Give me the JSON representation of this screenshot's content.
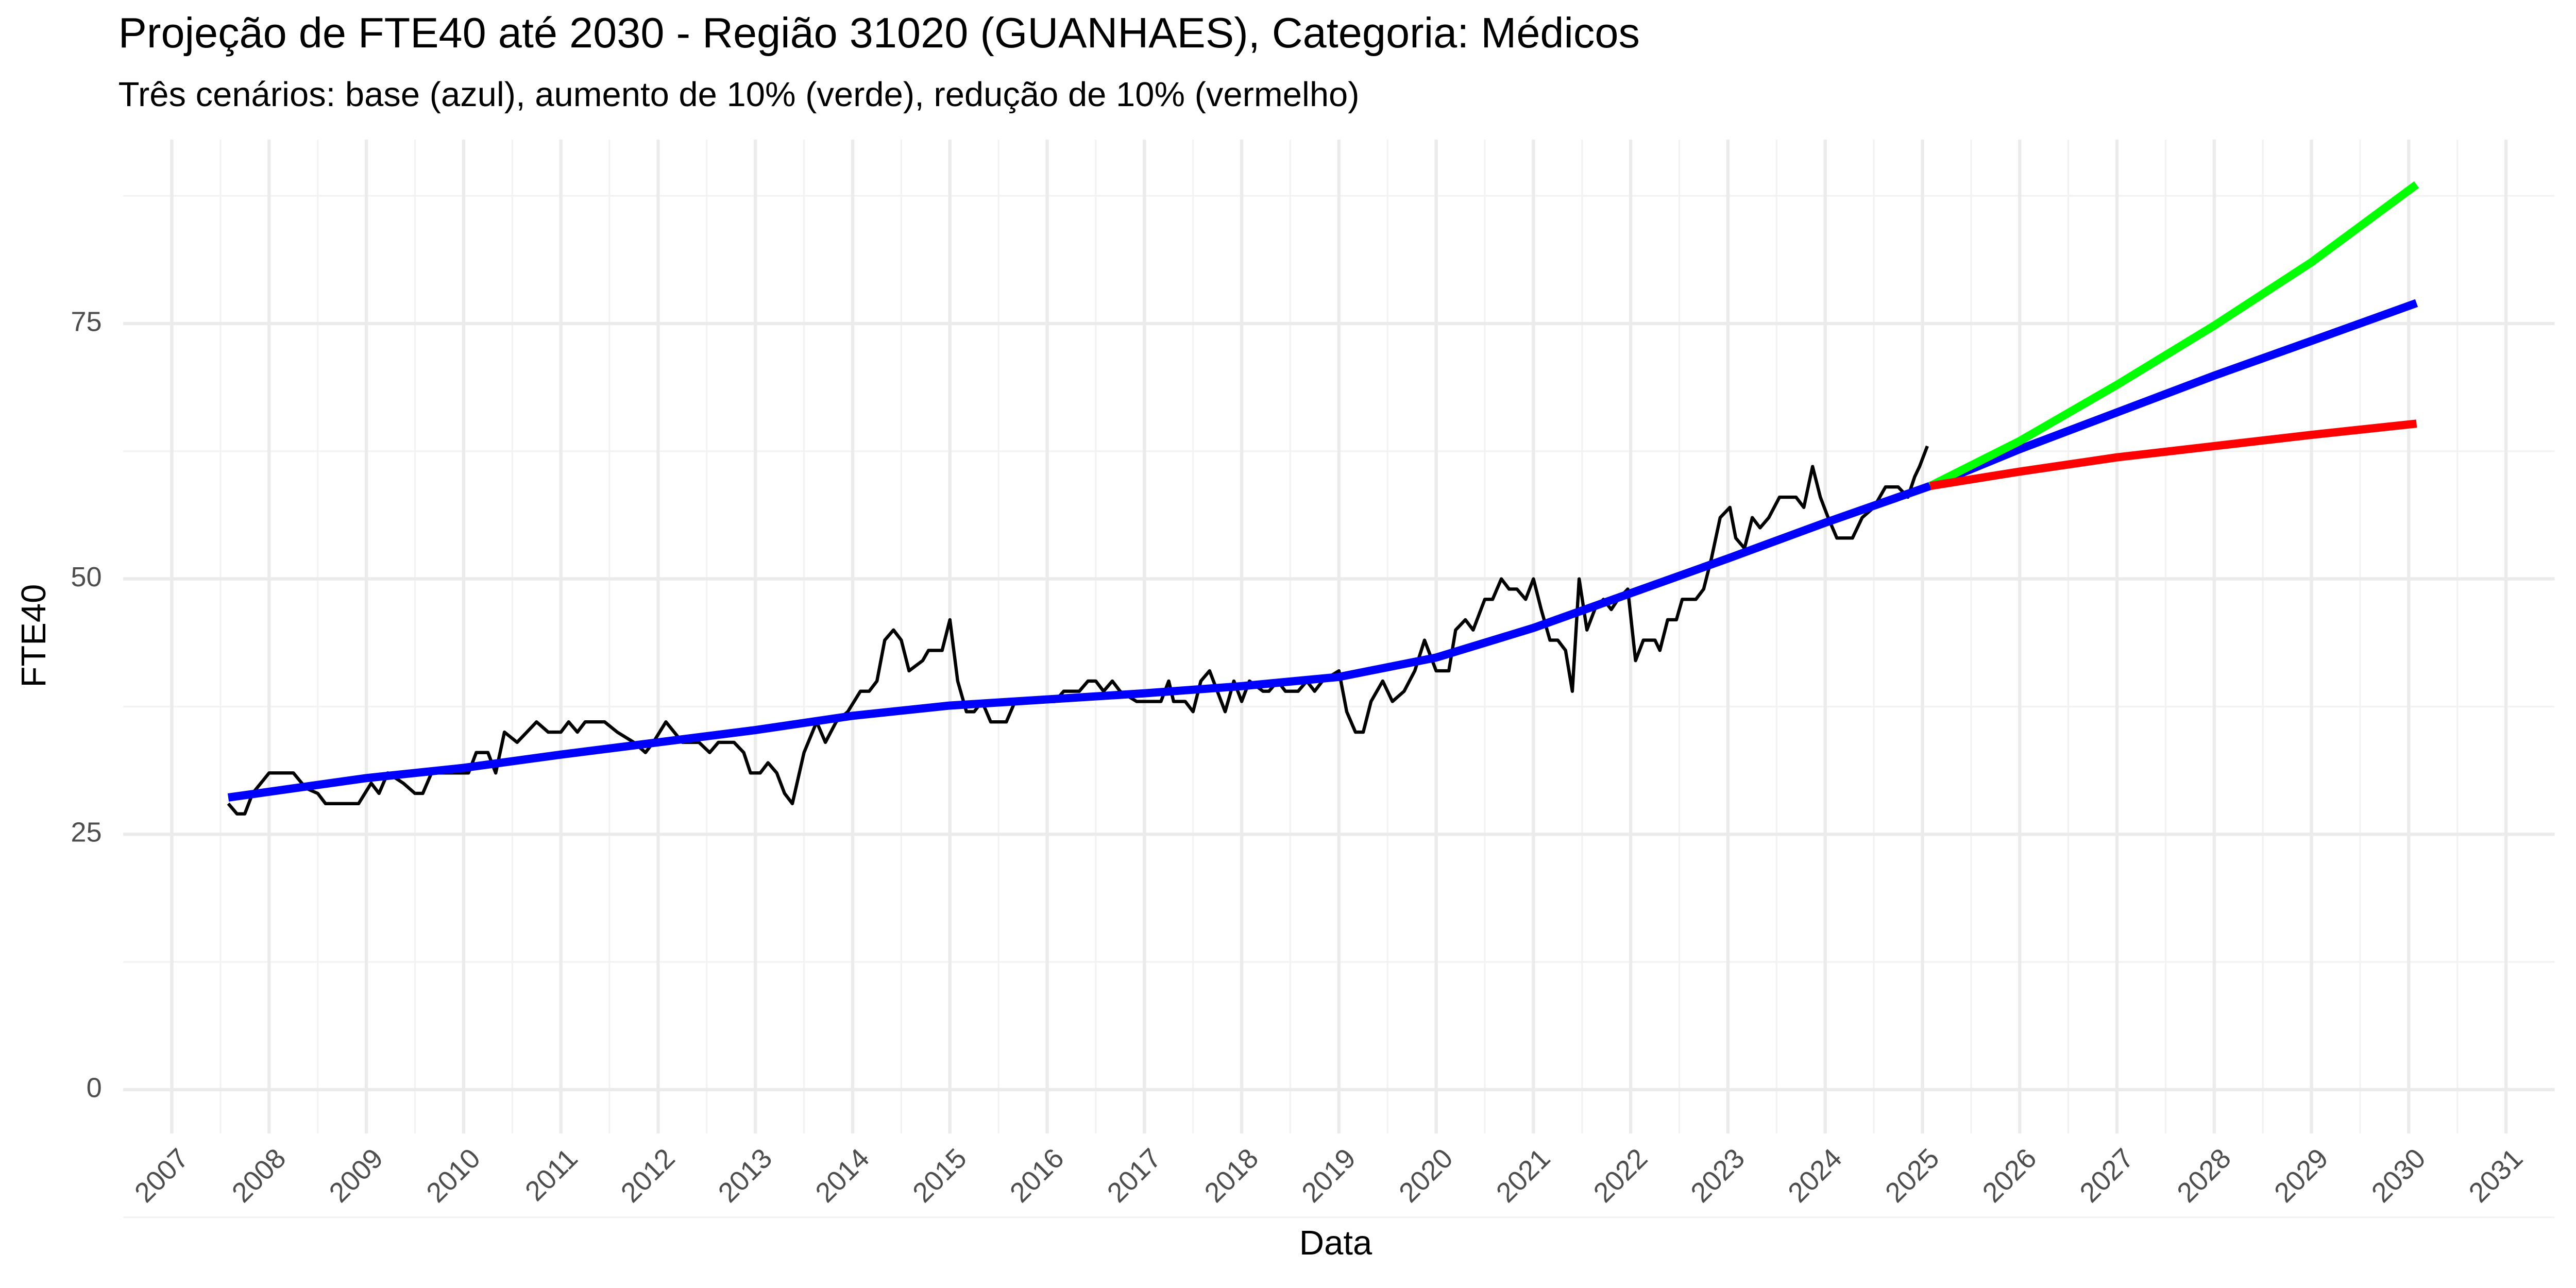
{
  "chart_data": {
    "type": "line",
    "title": "Projeção de FTE40 até 2030 - Região 31020 (GUANHAES), Categoria: Médicos",
    "subtitle": "Três cenários: base (azul), aumento de 10% (verde), redução de 10% (vermelho)",
    "x_label": "Data",
    "y_label": "FTE40",
    "xlim": [
      2006.5,
      2031.5
    ],
    "xticks": [
      2007,
      2008,
      2009,
      2010,
      2011,
      2012,
      2013,
      2014,
      2015,
      2016,
      2017,
      2018,
      2019,
      2020,
      2021,
      2022,
      2023,
      2024,
      2025,
      2026,
      2027,
      2028,
      2029,
      2030,
      2031
    ],
    "ylim": [
      -4.3,
      93
    ],
    "yticks": [
      0,
      25,
      50,
      75
    ],
    "grid": true,
    "series": [
      {
        "color": "#000000",
        "x": [
          2007.58,
          2007.67,
          2007.75,
          2007.83,
          2008.0,
          2008.25,
          2008.38,
          2008.5,
          2008.58,
          2008.92,
          2009.05,
          2009.13,
          2009.22,
          2009.38,
          2009.5,
          2009.58,
          2009.67,
          2010.05,
          2010.13,
          2010.25,
          2010.33,
          2010.42,
          2010.55,
          2010.75,
          2010.87,
          2011.0,
          2011.08,
          2011.17,
          2011.25,
          2011.45,
          2011.58,
          2011.75,
          2011.87,
          2011.95,
          2012.08,
          2012.25,
          2012.42,
          2012.53,
          2012.62,
          2012.78,
          2012.88,
          2012.95,
          2013.05,
          2013.13,
          2013.22,
          2013.3,
          2013.38,
          2013.5,
          2013.63,
          2013.72,
          2013.83,
          2013.95,
          2014.08,
          2014.17,
          2014.25,
          2014.33,
          2014.42,
          2014.5,
          2014.58,
          2014.72,
          2014.78,
          2014.92,
          2015.0,
          2015.08,
          2015.17,
          2015.25,
          2015.33,
          2015.42,
          2015.58,
          2015.67,
          2016.08,
          2016.17,
          2016.33,
          2016.42,
          2016.5,
          2016.58,
          2016.67,
          2016.75,
          2016.92,
          2017.17,
          2017.25,
          2017.3,
          2017.42,
          2017.5,
          2017.58,
          2017.67,
          2017.75,
          2017.83,
          2017.92,
          2018.0,
          2018.08,
          2018.22,
          2018.28,
          2018.37,
          2018.45,
          2018.58,
          2018.67,
          2018.75,
          2018.83,
          2019.0,
          2019.08,
          2019.17,
          2019.25,
          2019.33,
          2019.45,
          2019.55,
          2019.67,
          2019.78,
          2019.88,
          2020.0,
          2020.13,
          2020.2,
          2020.3,
          2020.38,
          2020.5,
          2020.58,
          2020.67,
          2020.75,
          2020.83,
          2020.92,
          2021.0,
          2021.08,
          2021.17,
          2021.25,
          2021.33,
          2021.4,
          2021.47,
          2021.55,
          2021.63,
          2021.72,
          2021.8,
          2021.87,
          2021.97,
          2022.05,
          2022.13,
          2022.25,
          2022.3,
          2022.38,
          2022.47,
          2022.53,
          2022.67,
          2022.75,
          2022.83,
          2022.92,
          2023.02,
          2023.08,
          2023.17,
          2023.25,
          2023.33,
          2023.42,
          2023.53,
          2023.7,
          2023.78,
          2023.87,
          2023.95,
          2024.03,
          2024.12,
          2024.28,
          2024.38,
          2024.5,
          2024.62,
          2024.75,
          2024.85,
          2024.92,
          2024.97,
          2025.05
        ],
        "values": [
          28,
          27,
          27,
          29,
          31,
          31,
          29.5,
          29,
          28,
          28,
          30,
          29,
          31,
          30,
          29,
          29,
          31,
          31,
          33,
          33,
          31,
          35,
          34,
          36,
          35,
          35,
          36,
          35,
          36,
          36,
          35,
          34,
          33,
          34,
          36,
          34,
          34,
          33,
          34,
          34,
          33,
          31,
          31,
          32,
          31,
          29,
          28,
          33,
          36,
          34,
          36,
          37,
          39,
          39,
          40,
          44,
          45,
          44,
          41,
          42,
          43,
          43,
          46,
          40,
          37,
          37,
          38,
          36,
          36,
          38,
          38,
          39,
          39,
          40,
          40,
          39,
          40,
          39,
          38,
          38,
          40,
          38,
          38,
          37,
          40,
          41,
          39,
          37,
          40,
          38,
          40,
          39,
          39,
          40,
          39,
          39,
          40,
          39,
          40,
          41,
          37,
          35,
          35,
          38,
          40,
          38,
          39,
          41,
          44,
          41,
          41,
          45,
          46,
          45,
          48,
          48,
          50,
          49,
          49,
          48,
          50,
          47,
          44,
          44,
          43,
          39,
          50,
          45,
          47,
          48,
          47,
          48,
          49,
          42,
          44,
          44,
          43,
          46,
          46,
          48,
          48,
          49,
          52,
          56,
          57,
          54,
          53,
          56,
          55,
          56,
          58,
          58,
          57,
          61,
          58,
          56,
          54,
          54,
          56,
          57,
          59,
          59,
          58,
          60,
          61,
          63
        ]
      },
      {
        "color": "#0000ff",
        "x": [
          2007.58,
          2009,
          2010,
          2011,
          2012,
          2013,
          2014,
          2015,
          2016,
          2017,
          2018,
          2019,
          2020,
          2021,
          2022,
          2023,
          2024,
          2025.08,
          2026,
          2027,
          2028,
          2029,
          2030.08
        ],
        "values": [
          28.6,
          30.5,
          31.5,
          32.8,
          34.0,
          35.2,
          36.6,
          37.6,
          38.2,
          38.8,
          39.5,
          40.4,
          42.3,
          45.2,
          48.6,
          52.0,
          55.5,
          59.1,
          62.7,
          66.3,
          69.9,
          73.3,
          77
        ]
      },
      {
        "color": "#00ff00",
        "x": [
          2025.08,
          2026,
          2027,
          2028,
          2029,
          2030.08
        ],
        "values": [
          59.1,
          63.5,
          69,
          74.8,
          81,
          88.6
        ]
      },
      {
        "color": "#ff0000",
        "x": [
          2025.08,
          2026,
          2027,
          2028,
          2029,
          2030.08
        ],
        "values": [
          59.1,
          60.5,
          61.9,
          63.0,
          64.1,
          65.2
        ]
      }
    ]
  }
}
